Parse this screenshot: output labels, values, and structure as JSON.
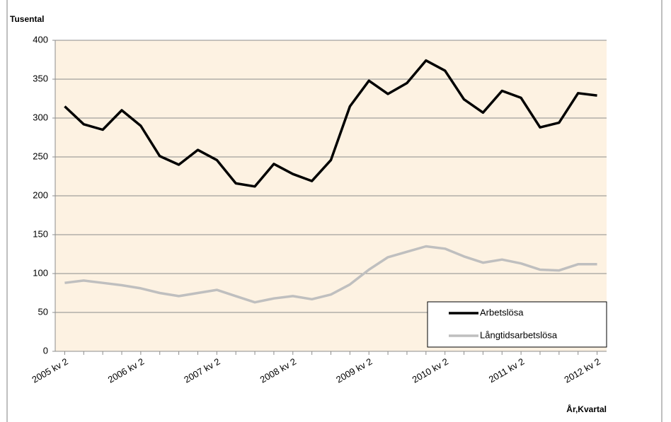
{
  "chart_data": {
    "type": "line",
    "y_axis_title": "Tusental",
    "x_axis_title": "År,Kvartal",
    "categories": [
      "2005 kv 2",
      null,
      null,
      null,
      "2006 kv 2",
      null,
      null,
      null,
      "2007 kv 2",
      null,
      null,
      null,
      "2008 kv 2",
      null,
      null,
      null,
      "2009 kv 2",
      null,
      null,
      null,
      "2010 kv 2",
      null,
      null,
      null,
      "2011 kv 2",
      null,
      null,
      null,
      "2012 kv 2"
    ],
    "series": [
      {
        "name": "Arbetslösa",
        "color": "#000000",
        "values": [
          315,
          292,
          285,
          310,
          290,
          251,
          240,
          259,
          246,
          216,
          212,
          241,
          228,
          219,
          246,
          315,
          348,
          331,
          345,
          374,
          361,
          324,
          307,
          335,
          326,
          288,
          294,
          332,
          329
        ]
      },
      {
        "name": "Långtidsarbetslösa",
        "color": "#bfbfbf",
        "values": [
          88,
          91,
          88,
          85,
          81,
          75,
          71,
          75,
          79,
          71,
          63,
          68,
          71,
          67,
          73,
          86,
          105,
          121,
          128,
          135,
          132,
          122,
          114,
          118,
          113,
          105,
          104,
          112,
          112
        ]
      }
    ],
    "ylim": [
      0,
      400
    ],
    "yticks": [
      0,
      50,
      100,
      150,
      200,
      250,
      300,
      350,
      400
    ],
    "grid": true,
    "legend": "lower-right"
  }
}
